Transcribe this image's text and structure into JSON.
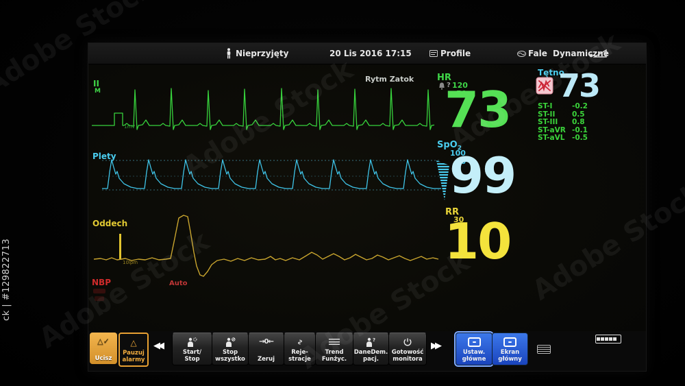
{
  "watermark": {
    "diagonal": "Adobe Stock",
    "vertical_id": "ck | #129822713"
  },
  "topbar": {
    "patient_status": "Nieprzyjęty",
    "datetime": "20 Lis 2016 17:15",
    "profile": "Profile",
    "waves": "Fale Dynamiczne"
  },
  "ecg": {
    "lead": "II",
    "filter": "M",
    "rhythm": "Rytm Zatok",
    "cal": "1mV"
  },
  "hr": {
    "label": "HR",
    "alarm_query": "?",
    "high": "120",
    "low": "50",
    "value": "73"
  },
  "pleth": {
    "label": "Plety"
  },
  "spo2": {
    "label_main": "SpO",
    "label_sub": "2",
    "high": "100",
    "low": "90",
    "value": "99"
  },
  "resp": {
    "label": "Oddech",
    "scale": "10lpm"
  },
  "rr": {
    "label": "RR",
    "high": "30",
    "low": "8",
    "value": "10"
  },
  "nbp": {
    "label": "NBP",
    "mode": "Auto"
  },
  "tetno": {
    "label": "Tętno",
    "value": "73"
  },
  "st": {
    "rows": [
      {
        "label": "ST-I",
        "value": "-0.2"
      },
      {
        "label": "ST-II",
        "value": "0.5"
      },
      {
        "label": "ST-III",
        "value": "0.8"
      },
      {
        "label": "ST-aVR",
        "value": "-0.1"
      },
      {
        "label": "ST-aVL",
        "value": "-0.5"
      }
    ]
  },
  "toolbar": {
    "prev": "◀◀",
    "next": "▶▶",
    "zeruj_icon": "→0←",
    "buttons": [
      {
        "l1": "Ucisz",
        "l2": ""
      },
      {
        "l1": "Pauzuj",
        "l2": "alarmy"
      },
      {
        "l1": "Start/",
        "l2": "Stop"
      },
      {
        "l1": "Stop",
        "l2": "wszystko"
      },
      {
        "l1": "Zeruj",
        "l2": ""
      },
      {
        "l1": "Reje-",
        "l2": "stracje"
      },
      {
        "l1": "Trend",
        "l2": "Funżyc."
      },
      {
        "l1": "DaneDem.",
        "l2": "pacj."
      },
      {
        "l1": "Gotowość",
        "l2": "monitora"
      },
      {
        "l1": "Ustaw.",
        "l2": "główne"
      },
      {
        "l1": "Ekran",
        "l2": "główny"
      }
    ]
  },
  "colors": {
    "ecg_green": "#3fd648",
    "spo2_cyan": "#45cdef",
    "resp_yellow": "#e8d438",
    "alarm_orange": "#e8a032",
    "nbp_red": "#cc2a2a",
    "button_blue": "#1e53cf"
  }
}
